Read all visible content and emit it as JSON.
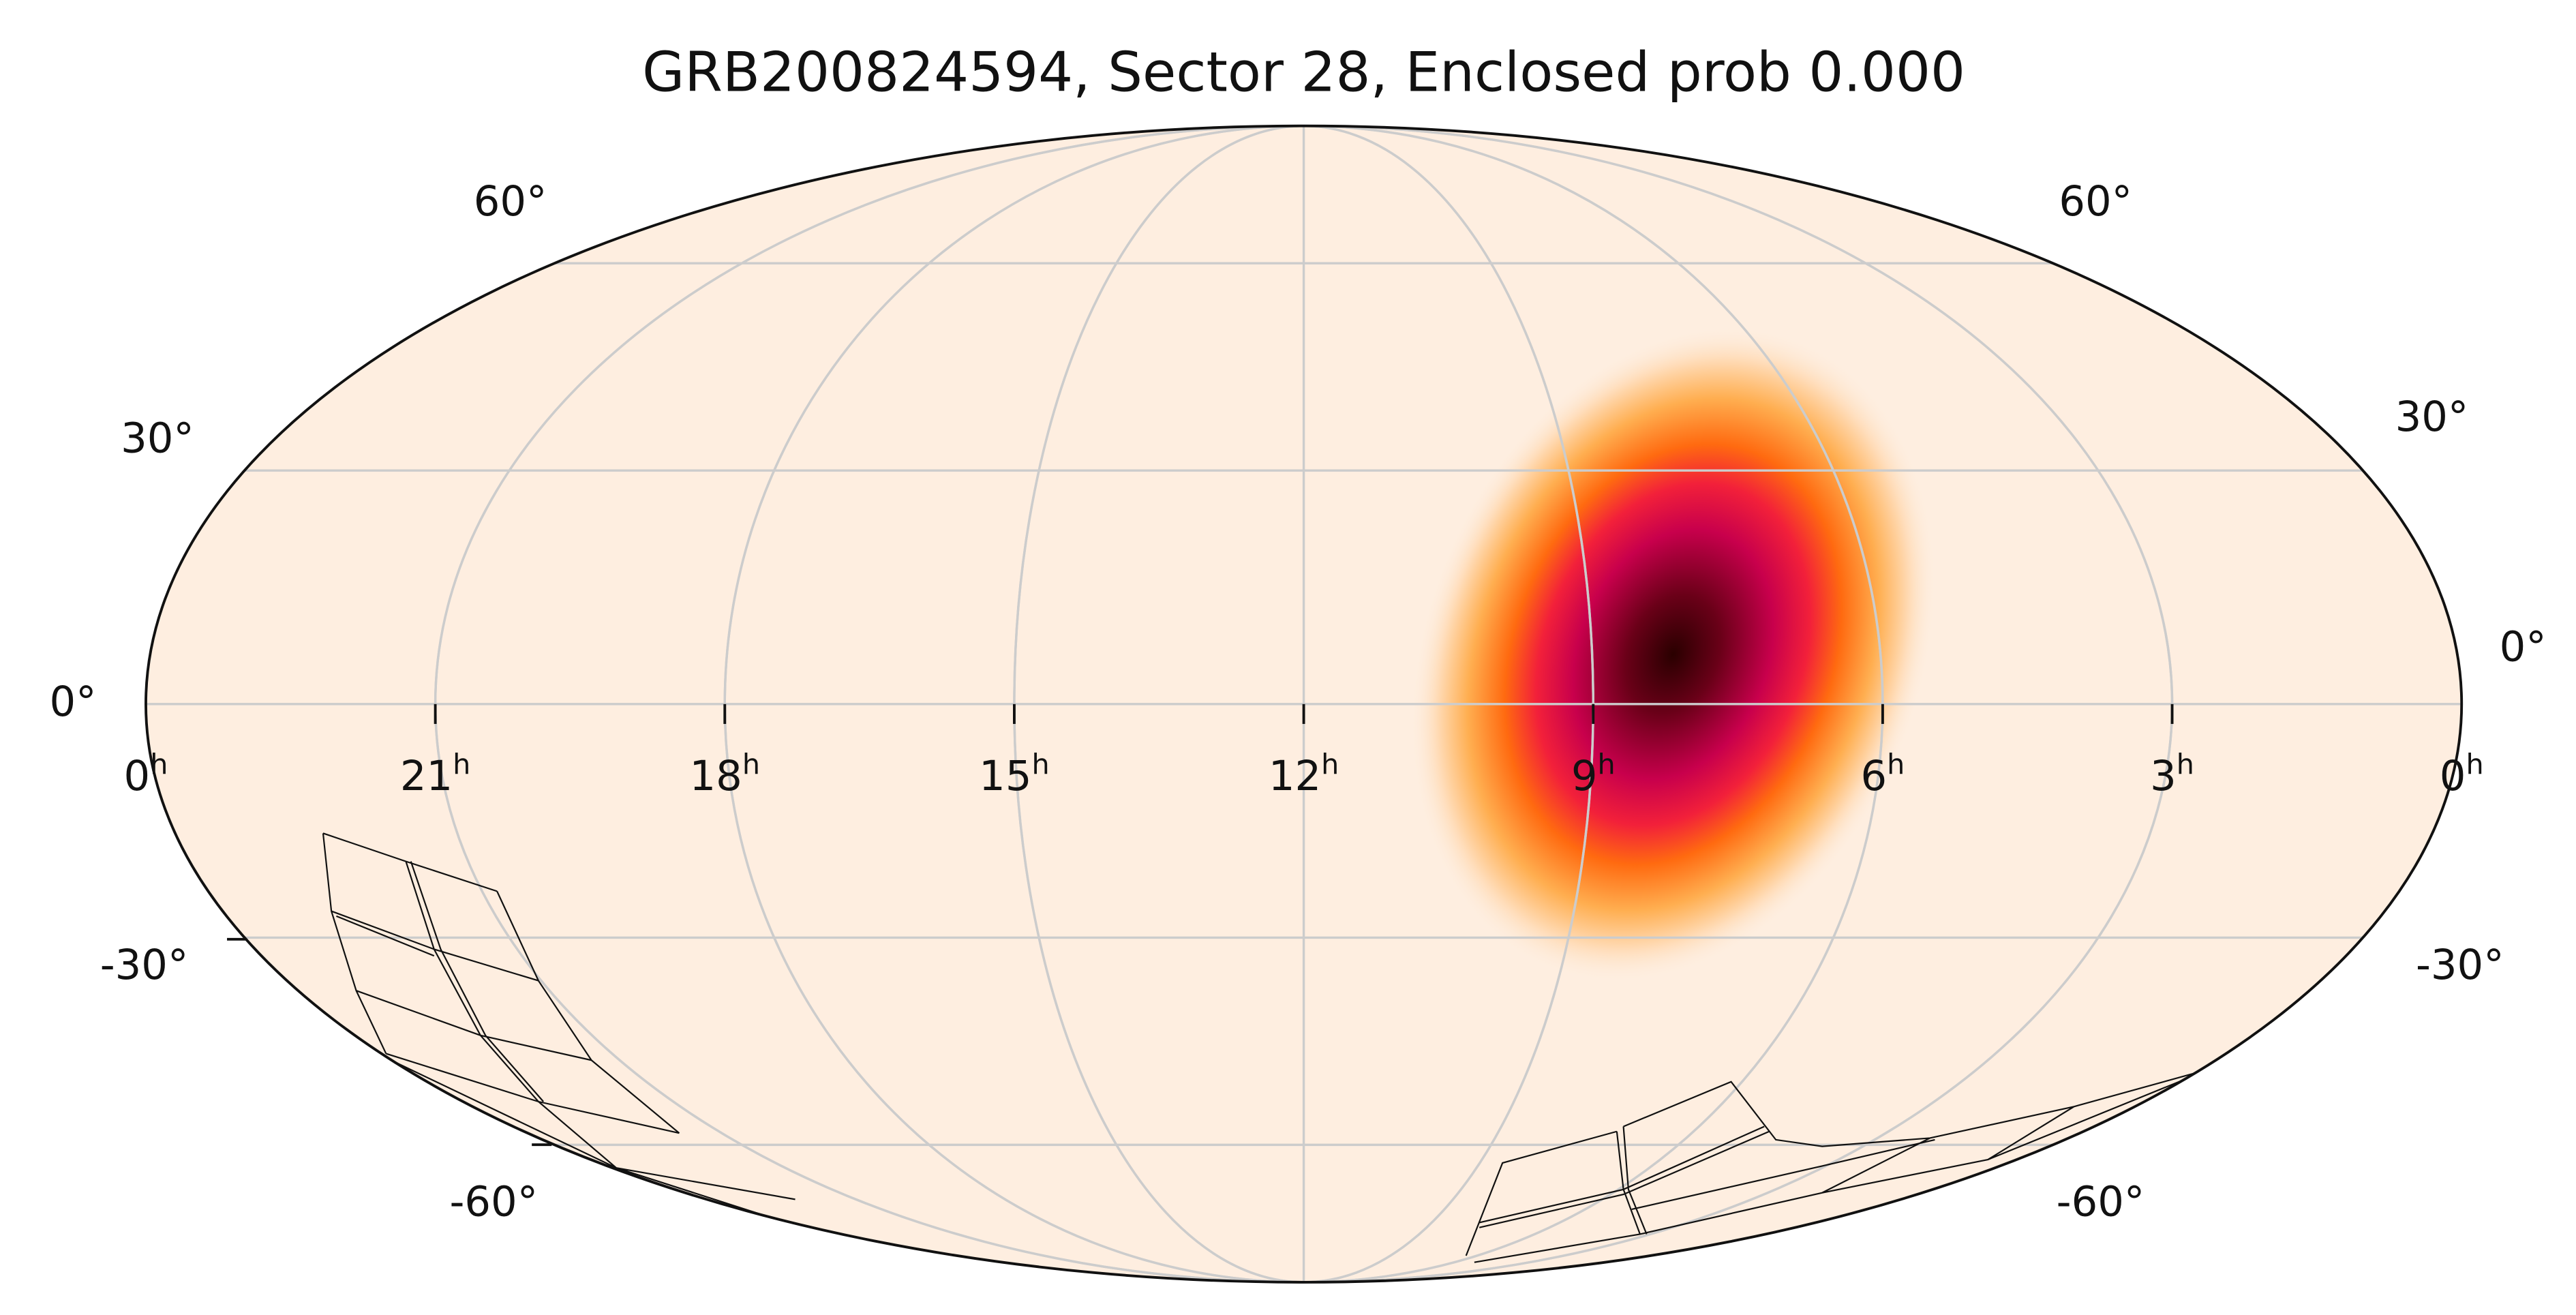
{
  "title": "GRB200824594, Sector 28, Enclosed prob 0.000",
  "ra_labels": [
    {
      "value": "0",
      "unit": "h"
    },
    {
      "value": "21",
      "unit": "h"
    },
    {
      "value": "18",
      "unit": "h"
    },
    {
      "value": "15",
      "unit": "h"
    },
    {
      "value": "12",
      "unit": "h"
    },
    {
      "value": "9",
      "unit": "h"
    },
    {
      "value": "6",
      "unit": "h"
    },
    {
      "value": "3",
      "unit": "h"
    },
    {
      "value": "0",
      "unit": "h"
    }
  ],
  "dec_labels_left": [
    "60°",
    "30°",
    "0°",
    "-30°",
    "-60°"
  ],
  "dec_labels_right": [
    "60°",
    "30°",
    "0°",
    "-30°",
    "-60°"
  ]
}
